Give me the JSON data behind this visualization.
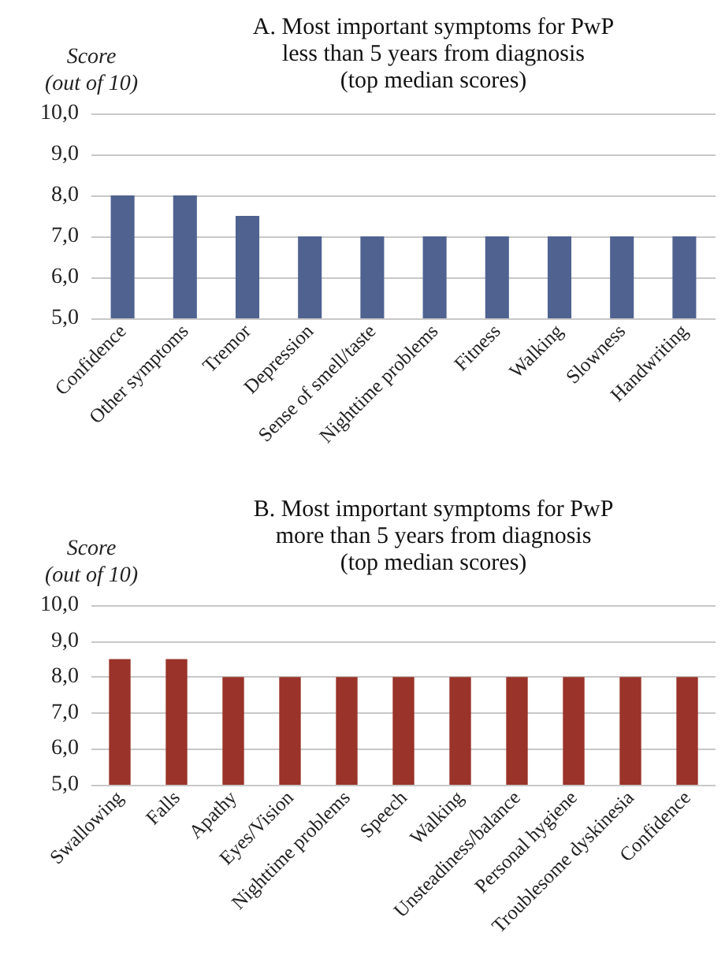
{
  "chart_data": [
    {
      "type": "bar",
      "title": "A. Most important symptoms for PwP\nless than 5 years from diagnosis\n(top median scores)",
      "ylabel": "Score\n(out of 10)",
      "categories": [
        "Confidence",
        "Other symptoms",
        "Tremor",
        "Depression",
        "Sense of smell/taste",
        "Nighttime problems",
        "Fitness",
        "Walking",
        "Slowness",
        "Handwriting"
      ],
      "values": [
        8,
        8,
        7.5,
        7,
        7,
        7,
        7,
        7,
        7,
        7
      ],
      "color": "#4f6290",
      "ylim": [
        5,
        10
      ],
      "yticks": [
        {
          "value": 5,
          "label": "5,0"
        },
        {
          "value": 6,
          "label": "6,0"
        },
        {
          "value": 7,
          "label": "7,0"
        },
        {
          "value": 8,
          "label": "8,0"
        },
        {
          "value": 9,
          "label": "9,0"
        },
        {
          "value": 10,
          "label": "10,0"
        }
      ],
      "grid": "y"
    },
    {
      "type": "bar",
      "title": "B. Most important symptoms for PwP\nmore than 5 years from diagnosis\n(top median scores)",
      "ylabel": "Score\n(out of 10)",
      "categories": [
        "Swallowing",
        "Falls",
        "Apathy",
        "Eyes/Vision",
        "Nighttime problems",
        "Speech",
        "Walking",
        "Unsteadiness/balance",
        "Personal hygiene",
        "Troublesome dyskinesia",
        "Confidence"
      ],
      "values": [
        8.5,
        8.5,
        8,
        8,
        8,
        8,
        8,
        8,
        8,
        8,
        8
      ],
      "color": "#9a3329",
      "ylim": [
        5,
        10
      ],
      "yticks": [
        {
          "value": 5,
          "label": "5,0"
        },
        {
          "value": 6,
          "label": "6,0"
        },
        {
          "value": 7,
          "label": "7,0"
        },
        {
          "value": 8,
          "label": "8,0"
        },
        {
          "value": 9,
          "label": "9,0"
        },
        {
          "value": 10,
          "label": "10,0"
        }
      ],
      "grid": "y"
    }
  ]
}
